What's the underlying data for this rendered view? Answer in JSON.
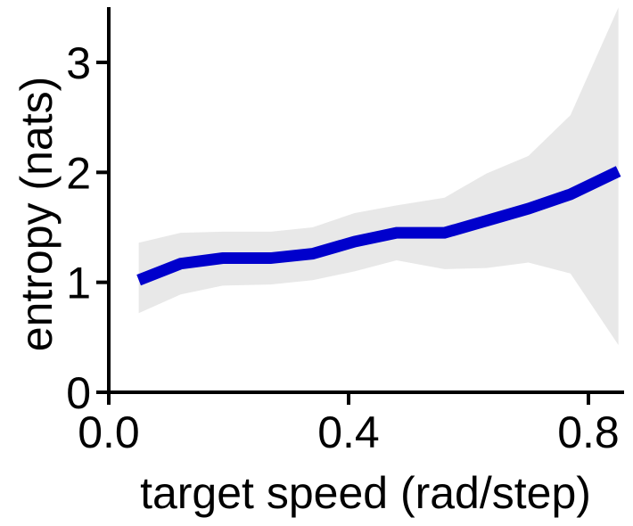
{
  "chart_data": {
    "type": "line",
    "title": "",
    "xlabel": "target speed (rad/step)",
    "ylabel": "entropy (nats)",
    "xlim": [
      0.0,
      0.88
    ],
    "ylim": [
      0,
      3.5
    ],
    "xticks": [
      0.0,
      0.4,
      0.8
    ],
    "xtick_labels": [
      "0.0",
      "0.4",
      "0.8"
    ],
    "yticks": [
      0,
      1,
      2,
      3
    ],
    "ytick_labels": [
      "0",
      "1",
      "2",
      "3"
    ],
    "grid": false,
    "legend": "none",
    "series": [
      {
        "x": [
          0.05,
          0.12,
          0.19,
          0.27,
          0.34,
          0.41,
          0.48,
          0.56,
          0.63,
          0.7,
          0.77,
          0.85
        ],
        "y": [
          1.02,
          1.17,
          1.22,
          1.22,
          1.26,
          1.37,
          1.45,
          1.45,
          1.56,
          1.67,
          1.8,
          2.01
        ],
        "lower": [
          0.72,
          0.89,
          0.97,
          0.98,
          1.02,
          1.1,
          1.2,
          1.12,
          1.13,
          1.18,
          1.08,
          0.43
        ],
        "upper": [
          1.36,
          1.45,
          1.46,
          1.46,
          1.5,
          1.63,
          1.7,
          1.77,
          1.99,
          2.15,
          2.52,
          3.5
        ],
        "color": "#0000cc",
        "band_color": "#e8e8e8"
      }
    ]
  }
}
